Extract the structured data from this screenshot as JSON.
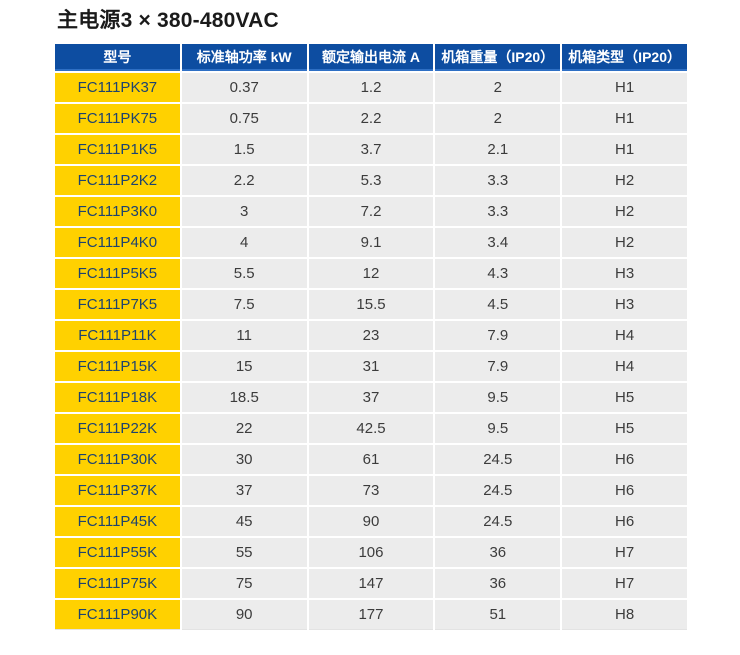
{
  "title": "主电源3 × 380-480VAC",
  "table": {
    "headers": [
      "型号",
      "标准轴功率 kW",
      "额定输出电流 A",
      "机箱重量（IP20）",
      "机箱类型（IP20）"
    ],
    "rows": [
      [
        "FC111PK37",
        "0.37",
        "1.2",
        "2",
        "H1"
      ],
      [
        "FC111PK75",
        "0.75",
        "2.2",
        "2",
        "H1"
      ],
      [
        "FC111P1K5",
        "1.5",
        "3.7",
        "2.1",
        "H1"
      ],
      [
        "FC111P2K2",
        "2.2",
        "5.3",
        "3.3",
        "H2"
      ],
      [
        "FC111P3K0",
        "3",
        "7.2",
        "3.3",
        "H2"
      ],
      [
        "FC111P4K0",
        "4",
        "9.1",
        "3.4",
        "H2"
      ],
      [
        "FC111P5K5",
        "5.5",
        "12",
        "4.3",
        "H3"
      ],
      [
        "FC111P7K5",
        "7.5",
        "15.5",
        "4.5",
        "H3"
      ],
      [
        "FC111P11K",
        "11",
        "23",
        "7.9",
        "H4"
      ],
      [
        "FC111P15K",
        "15",
        "31",
        "7.9",
        "H4"
      ],
      [
        "FC111P18K",
        "18.5",
        "37",
        "9.5",
        "H5"
      ],
      [
        "FC111P22K",
        "22",
        "42.5",
        "9.5",
        "H5"
      ],
      [
        "FC111P30K",
        "30",
        "61",
        "24.5",
        "H6"
      ],
      [
        "FC111P37K",
        "37",
        "73",
        "24.5",
        "H6"
      ],
      [
        "FC111P45K",
        "45",
        "90",
        "24.5",
        "H6"
      ],
      [
        "FC111P55K",
        "55",
        "106",
        "36",
        "H7"
      ],
      [
        "FC111P75K",
        "75",
        "147",
        "36",
        "H7"
      ],
      [
        "FC111P90K",
        "90",
        "177",
        "51",
        "H8"
      ]
    ]
  },
  "colors": {
    "header_bg": "#0d4da1",
    "header_accent": "#2e6fc4",
    "model_bg": "#ffd100",
    "model_text": "#1d4370",
    "cell_bg": "#ececec",
    "cell_text": "#3c3c3c",
    "title_text": "#1a1a1a"
  }
}
